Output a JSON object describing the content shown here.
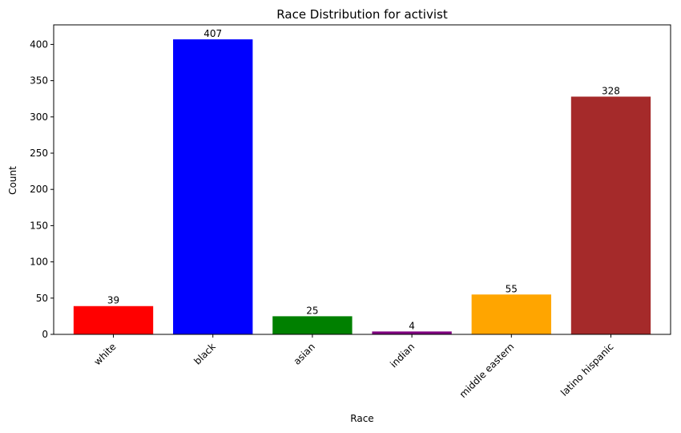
{
  "chart_data": {
    "type": "bar",
    "title": "Race Distribution for activist",
    "xlabel": "Race",
    "ylabel": "Count",
    "categories": [
      "white",
      "black",
      "asian",
      "indian",
      "middle eastern",
      "latino hispanic"
    ],
    "values": [
      39,
      407,
      25,
      4,
      55,
      328
    ],
    "colors": [
      "#ff0000",
      "#0000ff",
      "#008000",
      "#800080",
      "#ffa500",
      "#a52a2a"
    ],
    "data_labels": [
      "39",
      "407",
      "25",
      "4",
      "55",
      "328"
    ],
    "ylim": [
      0,
      427
    ],
    "yticks": [
      0,
      50,
      100,
      150,
      200,
      250,
      300,
      350,
      400
    ],
    "ytick_labels": [
      "0",
      "50",
      "100",
      "150",
      "200",
      "250",
      "300",
      "350",
      "400"
    ],
    "grid": false,
    "legend": false
  }
}
